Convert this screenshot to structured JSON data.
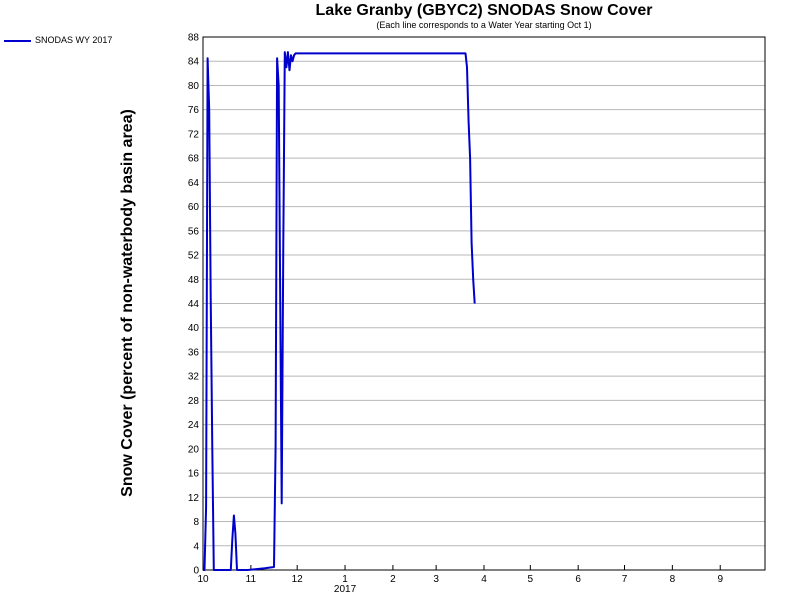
{
  "chart_data": {
    "type": "line",
    "title": "Lake Granby (GBYC2) SNODAS Snow Cover",
    "subtitle": "(Each line corresponds to a Water Year starting Oct 1)",
    "xlabel": "",
    "ylabel": "Snow Cover (percent of non-waterbody basin area)",
    "x_year_label": "2017",
    "ylim": [
      0,
      88
    ],
    "y_ticks": [
      0,
      4,
      8,
      12,
      16,
      20,
      24,
      28,
      32,
      36,
      40,
      44,
      48,
      52,
      56,
      60,
      64,
      68,
      72,
      76,
      80,
      84,
      88
    ],
    "x_range": [
      "2016-10-01",
      "2017-09-30"
    ],
    "x_ticks": [
      {
        "date": "2016-10-01",
        "label": "10"
      },
      {
        "date": "2016-11-01",
        "label": "11"
      },
      {
        "date": "2016-12-01",
        "label": "12"
      },
      {
        "date": "2017-01-01",
        "label": "1"
      },
      {
        "date": "2017-02-01",
        "label": "2"
      },
      {
        "date": "2017-03-01",
        "label": "3"
      },
      {
        "date": "2017-04-01",
        "label": "4"
      },
      {
        "date": "2017-05-01",
        "label": "5"
      },
      {
        "date": "2017-06-01",
        "label": "6"
      },
      {
        "date": "2017-07-01",
        "label": "7"
      },
      {
        "date": "2017-08-01",
        "label": "8"
      },
      {
        "date": "2017-09-01",
        "label": "9"
      }
    ],
    "grid": true,
    "legend_position": "top-left",
    "series": [
      {
        "name": "SNODAS WY 2017",
        "color": "#0000cc",
        "points": [
          [
            "2016-10-01",
            0
          ],
          [
            "2016-10-02",
            0
          ],
          [
            "2016-10-03",
            10.5
          ],
          [
            "2016-10-04",
            84.5
          ],
          [
            "2016-10-05",
            76
          ],
          [
            "2016-10-06",
            45
          ],
          [
            "2016-10-07",
            20
          ],
          [
            "2016-10-08",
            0
          ],
          [
            "2016-10-09",
            0
          ],
          [
            "2016-10-18",
            0
          ],
          [
            "2016-10-19",
            0
          ],
          [
            "2016-10-20",
            5
          ],
          [
            "2016-10-21",
            9
          ],
          [
            "2016-10-22",
            6
          ],
          [
            "2016-10-23",
            0
          ],
          [
            "2016-10-24",
            0
          ],
          [
            "2016-10-30",
            0
          ],
          [
            "2016-11-10",
            0.3
          ],
          [
            "2016-11-16",
            0.5
          ],
          [
            "2016-11-17",
            20.5
          ],
          [
            "2016-11-18",
            84.5
          ],
          [
            "2016-11-19",
            80
          ],
          [
            "2016-11-20",
            45
          ],
          [
            "2016-11-21",
            11
          ],
          [
            "2016-11-22",
            54
          ],
          [
            "2016-11-23",
            85.5
          ],
          [
            "2016-11-24",
            83
          ],
          [
            "2016-11-25",
            85.5
          ],
          [
            "2016-11-26",
            82.5
          ],
          [
            "2016-11-27",
            85
          ],
          [
            "2016-11-28",
            84
          ],
          [
            "2016-11-29",
            85
          ],
          [
            "2016-11-30",
            85.3
          ],
          [
            "2016-12-15",
            85.3
          ],
          [
            "2017-01-15",
            85.3
          ],
          [
            "2017-02-15",
            85.3
          ],
          [
            "2017-03-15",
            85.3
          ],
          [
            "2017-03-20",
            85.3
          ],
          [
            "2017-03-21",
            83
          ],
          [
            "2017-03-22",
            74
          ],
          [
            "2017-03-23",
            68
          ],
          [
            "2017-03-24",
            54
          ],
          [
            "2017-03-25",
            48
          ],
          [
            "2017-03-26",
            44
          ]
        ]
      }
    ]
  }
}
